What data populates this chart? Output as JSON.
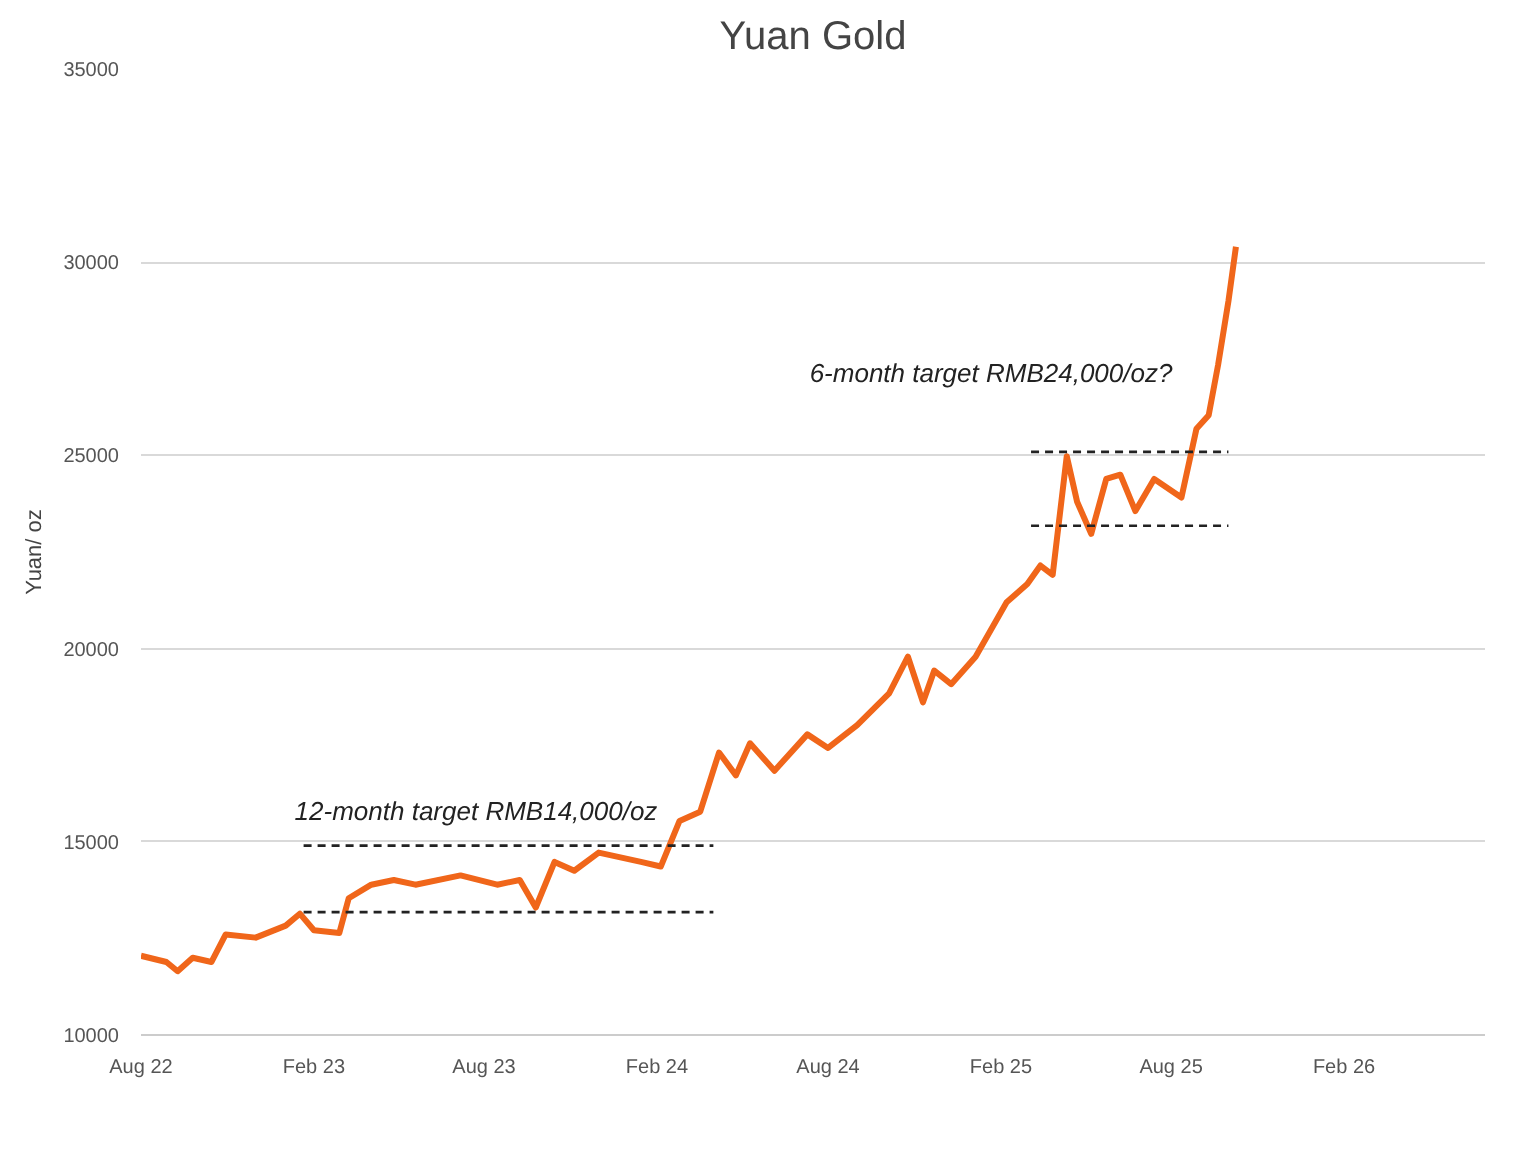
{
  "chart_data": {
    "type": "line",
    "title": "Yuan Gold",
    "ylabel": "Yuan/ oz",
    "xlim": [
      "2022-08-01",
      "2026-07-01"
    ],
    "ylim": [
      10000,
      35000
    ],
    "xticks": [
      {
        "value": "2022-08-01",
        "label": "Aug 22"
      },
      {
        "value": "2023-02-01",
        "label": "Feb 23"
      },
      {
        "value": "2023-08-01",
        "label": "Aug 23"
      },
      {
        "value": "2024-02-01",
        "label": "Feb 24"
      },
      {
        "value": "2024-08-01",
        "label": "Aug 24"
      },
      {
        "value": "2025-02-01",
        "label": "Feb 25"
      },
      {
        "value": "2025-08-01",
        "label": "Aug 25"
      },
      {
        "value": "2026-02-01",
        "label": "Feb 26"
      }
    ],
    "yticks": [
      10000,
      15000,
      20000,
      25000,
      30000,
      35000
    ],
    "grid": "y",
    "marker": "none",
    "line_style": "solid",
    "series": [
      {
        "color": "#f0661a",
        "x": [
          "2022-08-01",
          "2022-08-28",
          "2022-09-09",
          "2022-09-25",
          "2022-10-15",
          "2022-10-30",
          "2022-12-01",
          "2023-01-02",
          "2023-01-17",
          "2023-02-01",
          "2023-02-28",
          "2023-03-10",
          "2023-04-03",
          "2023-04-27",
          "2023-05-20",
          "2023-07-07",
          "2023-08-15",
          "2023-09-08",
          "2023-09-25",
          "2023-10-15",
          "2023-11-05",
          "2023-12-01",
          "2024-01-15",
          "2024-02-05",
          "2024-02-25",
          "2024-03-18",
          "2024-04-07",
          "2024-04-25",
          "2024-05-10",
          "2024-06-05",
          "2024-07-10",
          "2024-08-01",
          "2024-09-01",
          "2024-10-05",
          "2024-10-25",
          "2024-11-10",
          "2024-11-22",
          "2024-12-10",
          "2025-01-05",
          "2025-02-07",
          "2025-03-01",
          "2025-03-15",
          "2025-03-28",
          "2025-04-12",
          "2025-04-23",
          "2025-05-08",
          "2025-05-24",
          "2025-06-08",
          "2025-06-24",
          "2025-07-14",
          "2025-08-12",
          "2025-08-28",
          "2025-09-10",
          "2025-09-20",
          "2025-10-01",
          "2025-10-09"
        ],
        "values": [
          12050,
          11890,
          11650,
          12000,
          11890,
          12600,
          12520,
          12830,
          13140,
          12710,
          12640,
          13540,
          13890,
          14010,
          13890,
          14130,
          13890,
          14010,
          13300,
          14480,
          14250,
          14720,
          14480,
          14360,
          15540,
          15780,
          17310,
          16720,
          17550,
          16840,
          17780,
          17430,
          18020,
          18840,
          19790,
          18610,
          19430,
          19080,
          19790,
          21200,
          21670,
          22150,
          21910,
          24980,
          23800,
          22970,
          24390,
          24500,
          23560,
          24390,
          23910,
          25690,
          26040,
          27340,
          28990,
          30400
        ]
      },
      {
        "type": "line",
        "color": "#222222",
        "line_style": "dashed",
        "x": [
          "2023-01-21",
          "2024-04-01"
        ],
        "values": [
          14900,
          14900
        ]
      },
      {
        "type": "line",
        "color": "#222222",
        "line_style": "dashed",
        "x": [
          "2023-01-21",
          "2024-04-01"
        ],
        "values": [
          13180,
          13180
        ]
      },
      {
        "type": "line",
        "color": "#222222",
        "line_style": "dashed",
        "x": [
          "2025-03-05",
          "2025-10-01"
        ],
        "values": [
          25090,
          25090
        ]
      },
      {
        "type": "line",
        "color": "#222222",
        "line_style": "dashed",
        "x": [
          "2025-03-05",
          "2025-10-01"
        ],
        "values": [
          23180,
          23180
        ]
      }
    ],
    "annotations": [
      "12-month target RMB14,000/oz",
      "6-month target RMB24,000/oz?"
    ]
  }
}
